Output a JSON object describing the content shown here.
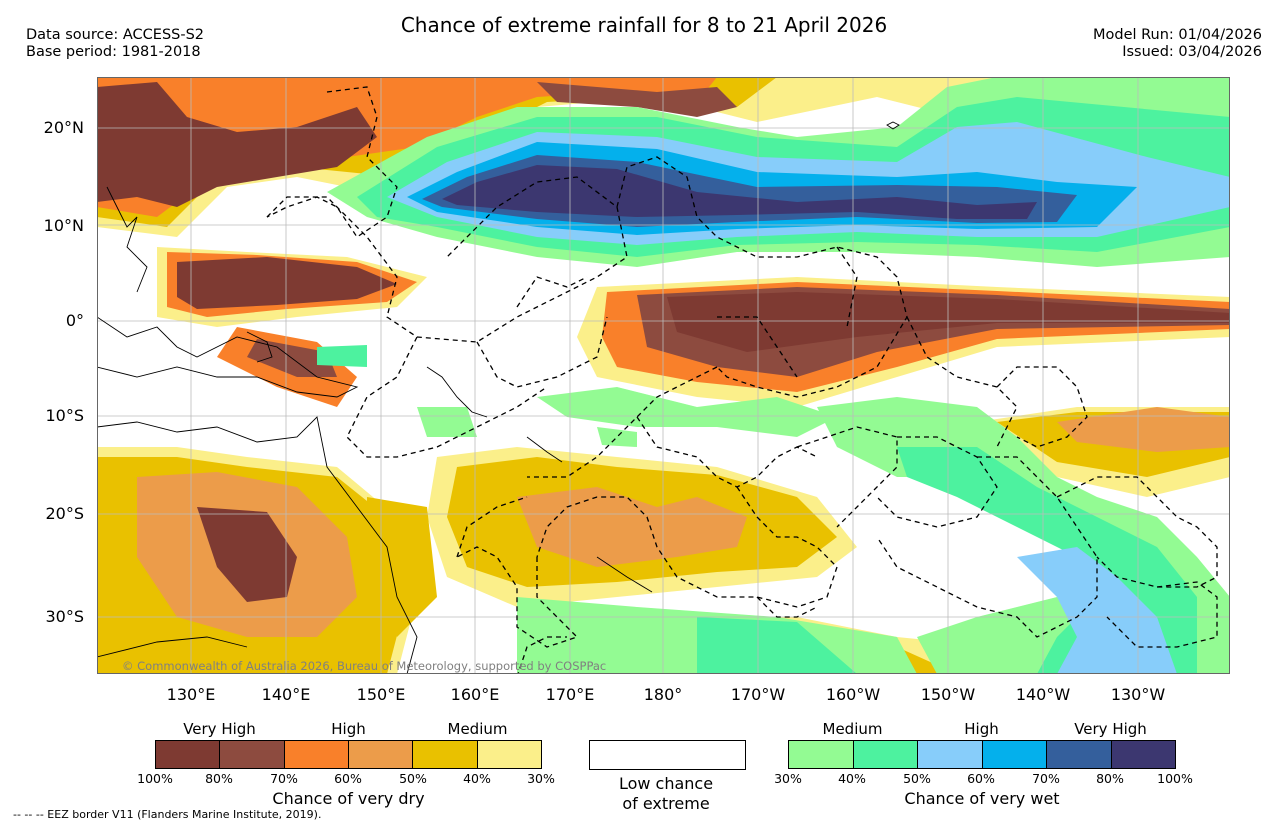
{
  "header": {
    "title": "Chance of extreme rainfall for 8 to 21 April 2026",
    "data_source": "Data source: ACCESS-S2",
    "base_period": "Base period: 1981-2018",
    "model_run": "Model Run: 01/04/2026",
    "issued": "Issued: 03/04/2026"
  },
  "axes": {
    "lat_labels": [
      "20°N",
      "10°N",
      "0°",
      "10°S",
      "20°S",
      "30°S"
    ],
    "lon_labels": [
      "130°E",
      "140°E",
      "150°E",
      "160°E",
      "170°E",
      "180°",
      "170°W",
      "160°W",
      "150°W",
      "140°W",
      "130°W"
    ]
  },
  "copyright": "© Commonwealth of Australia 2026, Bureau of Meteorology, supported by COSPPac",
  "legend": {
    "dry": {
      "headings": [
        "Very High",
        "High",
        "Medium"
      ],
      "ticks": [
        "100%",
        "80%",
        "70%",
        "60%",
        "50%",
        "40%",
        "30%"
      ],
      "colors": [
        "#7e3a32",
        "#8d4b3f",
        "#f9802a",
        "#ec9c4a",
        "#e9c100",
        "#fbef8a"
      ],
      "title": "Chance of very dry"
    },
    "neutral": {
      "line1": "Low chance",
      "line2": "of extreme"
    },
    "wet": {
      "headings": [
        "Medium",
        "High",
        "Very High"
      ],
      "ticks": [
        "30%",
        "40%",
        "50%",
        "60%",
        "70%",
        "80%",
        "100%"
      ],
      "colors": [
        "#93fb93",
        "#4df29f",
        "#87cdfa",
        "#04b0ec",
        "#345f9c",
        "#3c3770"
      ],
      "title": "Chance of very wet"
    }
  },
  "footnote": "--  --  -- EEZ border V11 (Flanders Marine Institute, 2019)."
}
